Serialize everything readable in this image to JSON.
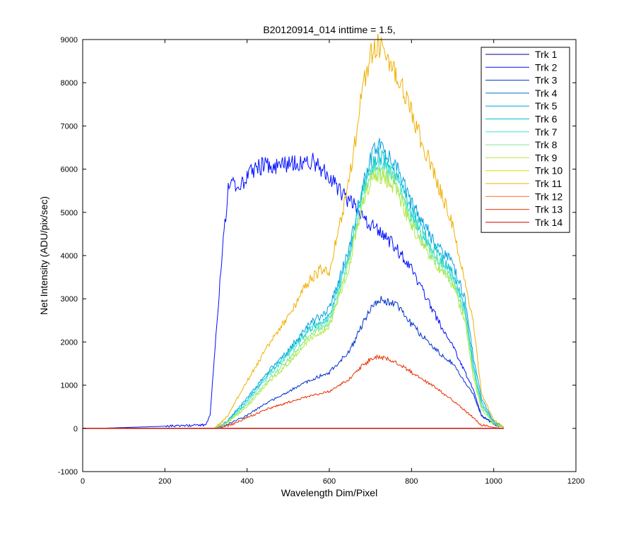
{
  "chart_data": {
    "type": "line",
    "title": "B20120914_014 inttime = 1.5,",
    "xlabel": "Wavelength Dim/Pixel",
    "ylabel": "Net Intensity (ADU/pix/sec)",
    "xlim": [
      0,
      1200
    ],
    "ylim": [
      -1000,
      9000
    ],
    "xticks": [
      0,
      200,
      400,
      600,
      800,
      1000,
      1200
    ],
    "yticks": [
      -1000,
      0,
      1000,
      2000,
      3000,
      4000,
      5000,
      6000,
      7000,
      8000,
      9000
    ],
    "grid": false,
    "legend_position": "top-right",
    "series": [
      {
        "name": "Trk 1",
        "color": "#00008f",
        "x": [
          0,
          1025
        ],
        "y": [
          0,
          0
        ]
      },
      {
        "name": "Trk 2",
        "color": "#000fff",
        "x": [
          0,
          40,
          300,
          310,
          340,
          355,
          380,
          400,
          420,
          500,
          560,
          600,
          620,
          650,
          680,
          700,
          720,
          760,
          800,
          850,
          900,
          950,
          970,
          1000,
          1025
        ],
        "y": [
          0,
          0,
          80,
          300,
          4200,
          5600,
          5650,
          5800,
          6050,
          6100,
          6200,
          5800,
          5550,
          5250,
          4950,
          4700,
          4600,
          4200,
          3700,
          2750,
          1900,
          900,
          300,
          100,
          20
        ]
      },
      {
        "name": "Trk 3",
        "color": "#0033cc",
        "x": [
          0,
          320,
          350,
          400,
          450,
          500,
          550,
          600,
          650,
          700,
          720,
          760,
          800,
          850,
          900,
          950,
          970,
          1000,
          1025
        ],
        "y": [
          0,
          0,
          80,
          300,
          600,
          850,
          1100,
          1300,
          1800,
          2800,
          3000,
          2900,
          2400,
          1900,
          1500,
          800,
          300,
          100,
          20
        ]
      },
      {
        "name": "Trk 4",
        "color": "#0070c8",
        "x": [
          0,
          1025
        ],
        "y": [
          0,
          0
        ]
      },
      {
        "name": "Trk 5",
        "color": "#00a0e0",
        "x": [
          0,
          320,
          350,
          400,
          450,
          500,
          550,
          600,
          650,
          680,
          700,
          720,
          760,
          800,
          850,
          900,
          930,
          950,
          970,
          1000,
          1025
        ],
        "y": [
          0,
          0,
          150,
          700,
          1300,
          1800,
          2400,
          2750,
          4200,
          5600,
          6200,
          6600,
          6100,
          5200,
          4400,
          3800,
          3000,
          1700,
          700,
          150,
          30
        ]
      },
      {
        "name": "Trk 6",
        "color": "#00c0d0",
        "x": [
          0,
          320,
          350,
          400,
          450,
          500,
          550,
          600,
          650,
          680,
          700,
          720,
          760,
          800,
          850,
          900,
          930,
          950,
          970,
          1000,
          1025
        ],
        "y": [
          0,
          0,
          140,
          650,
          1250,
          1750,
          2300,
          2600,
          4100,
          5500,
          6000,
          6350,
          5900,
          5000,
          4200,
          3600,
          2800,
          1500,
          600,
          130,
          25
        ]
      },
      {
        "name": "Trk 7",
        "color": "#40e0d0",
        "x": [
          0,
          320,
          350,
          400,
          450,
          500,
          550,
          600,
          650,
          680,
          700,
          720,
          760,
          800,
          850,
          900,
          930,
          950,
          970,
          1000,
          1025
        ],
        "y": [
          0,
          0,
          130,
          600,
          1200,
          1700,
          2250,
          2550,
          4000,
          5400,
          5900,
          6200,
          5800,
          4900,
          4100,
          3500,
          2700,
          1400,
          550,
          120,
          25
        ]
      },
      {
        "name": "Trk 8",
        "color": "#80e890",
        "x": [
          0,
          320,
          350,
          400,
          450,
          500,
          550,
          600,
          650,
          680,
          700,
          720,
          760,
          800,
          850,
          900,
          930,
          950,
          970,
          1000,
          1025
        ],
        "y": [
          0,
          0,
          120,
          550,
          1100,
          1600,
          2150,
          2450,
          3900,
          5300,
          5800,
          6000,
          5700,
          4800,
          4000,
          3400,
          2600,
          1300,
          500,
          110,
          20
        ]
      },
      {
        "name": "Trk 9",
        "color": "#b0e840",
        "x": [
          0,
          320,
          350,
          400,
          450,
          500,
          550,
          600,
          650,
          680,
          700,
          720,
          760,
          800,
          850,
          900,
          930,
          950,
          970,
          1000,
          1025
        ],
        "y": [
          0,
          0,
          110,
          500,
          1050,
          1500,
          2050,
          2350,
          3800,
          5200,
          5700,
          5900,
          5600,
          4700,
          3900,
          3300,
          2500,
          1200,
          450,
          100,
          20
        ]
      },
      {
        "name": "Trk 10",
        "color": "#e0e000",
        "x": [
          0,
          1025
        ],
        "y": [
          0,
          0
        ]
      },
      {
        "name": "Trk 11",
        "color": "#f0b000",
        "x": [
          0,
          320,
          350,
          400,
          450,
          500,
          550,
          580,
          600,
          650,
          680,
          700,
          720,
          760,
          800,
          850,
          900,
          950,
          970,
          1000,
          1025
        ],
        "y": [
          0,
          0,
          250,
          1100,
          1900,
          2600,
          3400,
          3700,
          3600,
          5800,
          7800,
          8600,
          8900,
          8300,
          7300,
          6000,
          4700,
          2500,
          800,
          200,
          30
        ]
      },
      {
        "name": "Trk 12",
        "color": "#ff7020",
        "x": [
          0,
          1025
        ],
        "y": [
          0,
          0
        ]
      },
      {
        "name": "Trk 13",
        "color": "#e83000",
        "x": [
          0,
          330,
          360,
          400,
          450,
          500,
          550,
          600,
          650,
          680,
          700,
          720,
          760,
          800,
          850,
          900,
          950,
          970,
          1000,
          1025
        ],
        "y": [
          0,
          0,
          80,
          250,
          450,
          600,
          750,
          850,
          1150,
          1450,
          1600,
          1650,
          1550,
          1300,
          1000,
          650,
          250,
          80,
          20,
          0
        ]
      },
      {
        "name": "Trk 14",
        "color": "#d00000",
        "x": [
          0,
          1025
        ],
        "y": [
          0,
          0
        ]
      }
    ]
  }
}
